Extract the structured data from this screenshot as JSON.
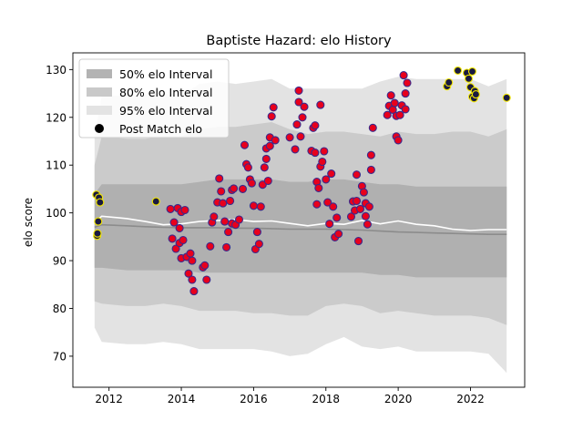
{
  "chart_data": {
    "type": "scatter",
    "title": "Baptiste Hazard: elo History",
    "xlabel": "",
    "ylabel": "elo score",
    "xlim": [
      2011.0,
      2023.5
    ],
    "ylim": [
      63.5,
      133.5
    ],
    "x_ticks": [
      {
        "value": 2012,
        "label": "2012"
      },
      {
        "value": 2014,
        "label": "2014"
      },
      {
        "value": 2016,
        "label": "2016"
      },
      {
        "value": 2018,
        "label": "2018"
      },
      {
        "value": 2020,
        "label": "2020"
      },
      {
        "value": 2022,
        "label": "2022"
      }
    ],
    "y_ticks": [
      {
        "value": 70,
        "label": "70"
      },
      {
        "value": 80,
        "label": "80"
      },
      {
        "value": 90,
        "label": "90"
      },
      {
        "value": 100,
        "label": "100"
      },
      {
        "value": 110,
        "label": "110"
      },
      {
        "value": 120,
        "label": "120"
      },
      {
        "value": 130,
        "label": "130"
      }
    ],
    "grid": false,
    "legend_position": "top-left",
    "legend": [
      {
        "label": "50% elo Interval",
        "kind": "patch",
        "color": "#b3b3b3"
      },
      {
        "label": "80% elo Interval",
        "kind": "patch",
        "color": "#c9c9c9"
      },
      {
        "label": "95% elo Interval",
        "kind": "patch",
        "color": "#e3e3e3"
      },
      {
        "label": "Post Match elo",
        "kind": "marker",
        "color": "#000000"
      }
    ],
    "colors": {
      "band95": "#e3e3e3",
      "band80": "#cbcbcb",
      "band50": "#b0b0b0",
      "median_line": "#8c8c8c",
      "trend_line": "#ffffff",
      "point_red_fill": "#e8001c",
      "point_red_edge": "#3a2a8c",
      "point_yellow_fill": "#1a1a40",
      "point_yellow_edge": "#f2e600"
    },
    "bands": {
      "x": [
        2011.6,
        2011.8,
        2012.5,
        2013.0,
        2013.5,
        2014.0,
        2014.5,
        2015.0,
        2015.5,
        2016.0,
        2016.5,
        2017.0,
        2017.5,
        2018.0,
        2018.5,
        2019.0,
        2019.5,
        2020.0,
        2020.5,
        2021.0,
        2021.5,
        2022.0,
        2022.5,
        2023.0
      ],
      "p95_upper": [
        116,
        124.5,
        124.5,
        124.8,
        125,
        124.5,
        127,
        127.5,
        127,
        127.5,
        128,
        126,
        126,
        126,
        126,
        126,
        127.5,
        128.5,
        128,
        128,
        128,
        128,
        126.5,
        128
      ],
      "p95_lower": [
        76,
        73,
        72.5,
        72.5,
        73,
        72.5,
        71.5,
        71.5,
        71.5,
        71.5,
        71,
        70,
        70.5,
        72.5,
        74,
        72,
        71.5,
        72,
        71,
        71,
        71,
        71,
        70.5,
        66.5
      ],
      "p80_upper": [
        110,
        116,
        115.5,
        115.5,
        116,
        116,
        117.5,
        118,
        118,
        118.5,
        119,
        117.5,
        116.5,
        117,
        117,
        116.5,
        116,
        117,
        116.5,
        116.5,
        117,
        117,
        116,
        117.5
      ],
      "p80_lower": [
        81.5,
        81,
        80.5,
        80.5,
        81,
        80.5,
        79.5,
        79.5,
        79.5,
        79,
        79,
        78.5,
        78.5,
        80.5,
        81,
        80.5,
        79,
        79.5,
        79,
        78.5,
        78.5,
        78.5,
        78,
        76.5
      ],
      "p50_upper": [
        104,
        106,
        106,
        106,
        106,
        106,
        106.5,
        107,
        107,
        107,
        107,
        106.5,
        106.5,
        107,
        107,
        106.5,
        106,
        106,
        105.5,
        105.5,
        105.5,
        105.5,
        105.5,
        105.5
      ],
      "p50_lower": [
        88.5,
        88.5,
        88,
        88,
        88,
        88,
        87.5,
        87.5,
        87.5,
        87.5,
        87.5,
        87.5,
        87.5,
        87.5,
        87.5,
        87.5,
        87,
        87,
        86.5,
        86.5,
        86.5,
        86.5,
        86.5,
        86.5
      ],
      "median": [
        97,
        97.5,
        97.3,
        97.1,
        97.0,
        96.9,
        96.9,
        96.9,
        96.8,
        96.8,
        96.7,
        96.6,
        96.6,
        96.6,
        96.5,
        96.4,
        96.2,
        96.0,
        95.9,
        95.8,
        95.7,
        95.6,
        95.5,
        95.5
      ],
      "trend": [
        98,
        99.3,
        98.8,
        98.2,
        97.5,
        97.7,
        98.2,
        98.4,
        98.6,
        98.2,
        98.3,
        97.8,
        97.3,
        97.8,
        97.6,
        98.4,
        97.7,
        98.3,
        97.6,
        97.3,
        96.6,
        96.3,
        96.5,
        96.5
      ]
    },
    "series": [
      {
        "style": "yellow",
        "points": [
          [
            2011.65,
            103.8
          ],
          [
            2011.67,
            95.2
          ],
          [
            2011.68,
            95.7
          ],
          [
            2011.7,
            98.2
          ],
          [
            2011.72,
            103.2
          ],
          [
            2011.75,
            102.2
          ],
          [
            2013.3,
            102.4
          ],
          [
            2021.35,
            126.5
          ],
          [
            2021.4,
            127.3
          ],
          [
            2021.65,
            129.8
          ],
          [
            2021.9,
            129.3
          ],
          [
            2021.95,
            128.1
          ],
          [
            2022.0,
            126.3
          ],
          [
            2022.05,
            129.6
          ],
          [
            2022.05,
            124.3
          ],
          [
            2022.1,
            124.0
          ],
          [
            2022.12,
            125.5
          ],
          [
            2022.15,
            124.8
          ],
          [
            2023.0,
            124.1
          ]
        ]
      },
      {
        "style": "red",
        "points": [
          [
            2013.7,
            100.8
          ],
          [
            2013.75,
            94.6
          ],
          [
            2013.8,
            98.0
          ],
          [
            2013.85,
            92.5
          ],
          [
            2013.9,
            101.0
          ],
          [
            2013.95,
            93.7
          ],
          [
            2013.95,
            96.8
          ],
          [
            2014.0,
            100.2
          ],
          [
            2014.0,
            90.5
          ],
          [
            2014.05,
            94.3
          ],
          [
            2014.1,
            100.6
          ],
          [
            2014.15,
            90.8
          ],
          [
            2014.2,
            87.3
          ],
          [
            2014.25,
            91.5
          ],
          [
            2014.3,
            90.0
          ],
          [
            2014.3,
            86.0
          ],
          [
            2014.35,
            83.6
          ],
          [
            2014.6,
            88.6
          ],
          [
            2014.65,
            89.0
          ],
          [
            2014.7,
            86.0
          ],
          [
            2014.8,
            93.0
          ],
          [
            2014.85,
            98.0
          ],
          [
            2014.9,
            99.2
          ],
          [
            2015.0,
            102.2
          ],
          [
            2015.05,
            107.2
          ],
          [
            2015.1,
            104.5
          ],
          [
            2015.15,
            102.0
          ],
          [
            2015.2,
            98.2
          ],
          [
            2015.25,
            92.8
          ],
          [
            2015.3,
            96.0
          ],
          [
            2015.35,
            102.5
          ],
          [
            2015.4,
            104.8
          ],
          [
            2015.4,
            97.8
          ],
          [
            2015.45,
            105.1
          ],
          [
            2015.5,
            97.5
          ],
          [
            2015.6,
            98.6
          ],
          [
            2015.7,
            105.0
          ],
          [
            2015.75,
            114.2
          ],
          [
            2015.8,
            110.2
          ],
          [
            2015.85,
            109.5
          ],
          [
            2015.9,
            107.0
          ],
          [
            2015.95,
            106.2
          ],
          [
            2016.0,
            101.5
          ],
          [
            2016.05,
            92.4
          ],
          [
            2016.1,
            96.0
          ],
          [
            2016.15,
            93.5
          ],
          [
            2016.2,
            101.3
          ],
          [
            2016.25,
            105.9
          ],
          [
            2016.3,
            109.5
          ],
          [
            2016.35,
            111.3
          ],
          [
            2016.35,
            113.5
          ],
          [
            2016.4,
            106.7
          ],
          [
            2016.45,
            114.0
          ],
          [
            2016.45,
            115.8
          ],
          [
            2016.5,
            120.2
          ],
          [
            2016.55,
            122.1
          ],
          [
            2016.6,
            115.2
          ],
          [
            2017.0,
            115.8
          ],
          [
            2017.15,
            113.3
          ],
          [
            2017.2,
            118.5
          ],
          [
            2017.25,
            123.2
          ],
          [
            2017.25,
            125.6
          ],
          [
            2017.3,
            116.0
          ],
          [
            2017.35,
            120.0
          ],
          [
            2017.4,
            122.2
          ],
          [
            2017.6,
            113.0
          ],
          [
            2017.65,
            117.8
          ],
          [
            2017.7,
            118.3
          ],
          [
            2017.7,
            112.6
          ],
          [
            2017.75,
            106.5
          ],
          [
            2017.75,
            101.8
          ],
          [
            2017.8,
            105.2
          ],
          [
            2017.85,
            109.7
          ],
          [
            2017.85,
            122.6
          ],
          [
            2017.9,
            110.7
          ],
          [
            2017.95,
            112.9
          ],
          [
            2018.0,
            107.0
          ],
          [
            2018.05,
            102.2
          ],
          [
            2018.1,
            97.7
          ],
          [
            2018.15,
            108.2
          ],
          [
            2018.2,
            101.3
          ],
          [
            2018.25,
            94.9
          ],
          [
            2018.3,
            99.0
          ],
          [
            2018.35,
            95.6
          ],
          [
            2018.7,
            99.2
          ],
          [
            2018.75,
            102.4
          ],
          [
            2018.8,
            100.5
          ],
          [
            2018.85,
            102.5
          ],
          [
            2018.85,
            108.0
          ],
          [
            2018.9,
            94.1
          ],
          [
            2018.95,
            100.8
          ],
          [
            2019.0,
            105.6
          ],
          [
            2019.05,
            104.3
          ],
          [
            2019.1,
            99.3
          ],
          [
            2019.1,
            102.0
          ],
          [
            2019.15,
            97.6
          ],
          [
            2019.2,
            101.3
          ],
          [
            2019.25,
            109.0
          ],
          [
            2019.25,
            112.1
          ],
          [
            2019.3,
            117.8
          ],
          [
            2019.7,
            120.5
          ],
          [
            2019.75,
            122.4
          ],
          [
            2019.8,
            124.6
          ],
          [
            2019.85,
            121.6
          ],
          [
            2019.9,
            123.0
          ],
          [
            2019.95,
            116.0
          ],
          [
            2019.95,
            120.3
          ],
          [
            2020.0,
            115.2
          ],
          [
            2020.05,
            120.5
          ],
          [
            2020.1,
            122.5
          ],
          [
            2020.15,
            128.8
          ],
          [
            2020.2,
            121.7
          ],
          [
            2020.2,
            125.0
          ],
          [
            2020.25,
            127.2
          ]
        ]
      }
    ]
  }
}
